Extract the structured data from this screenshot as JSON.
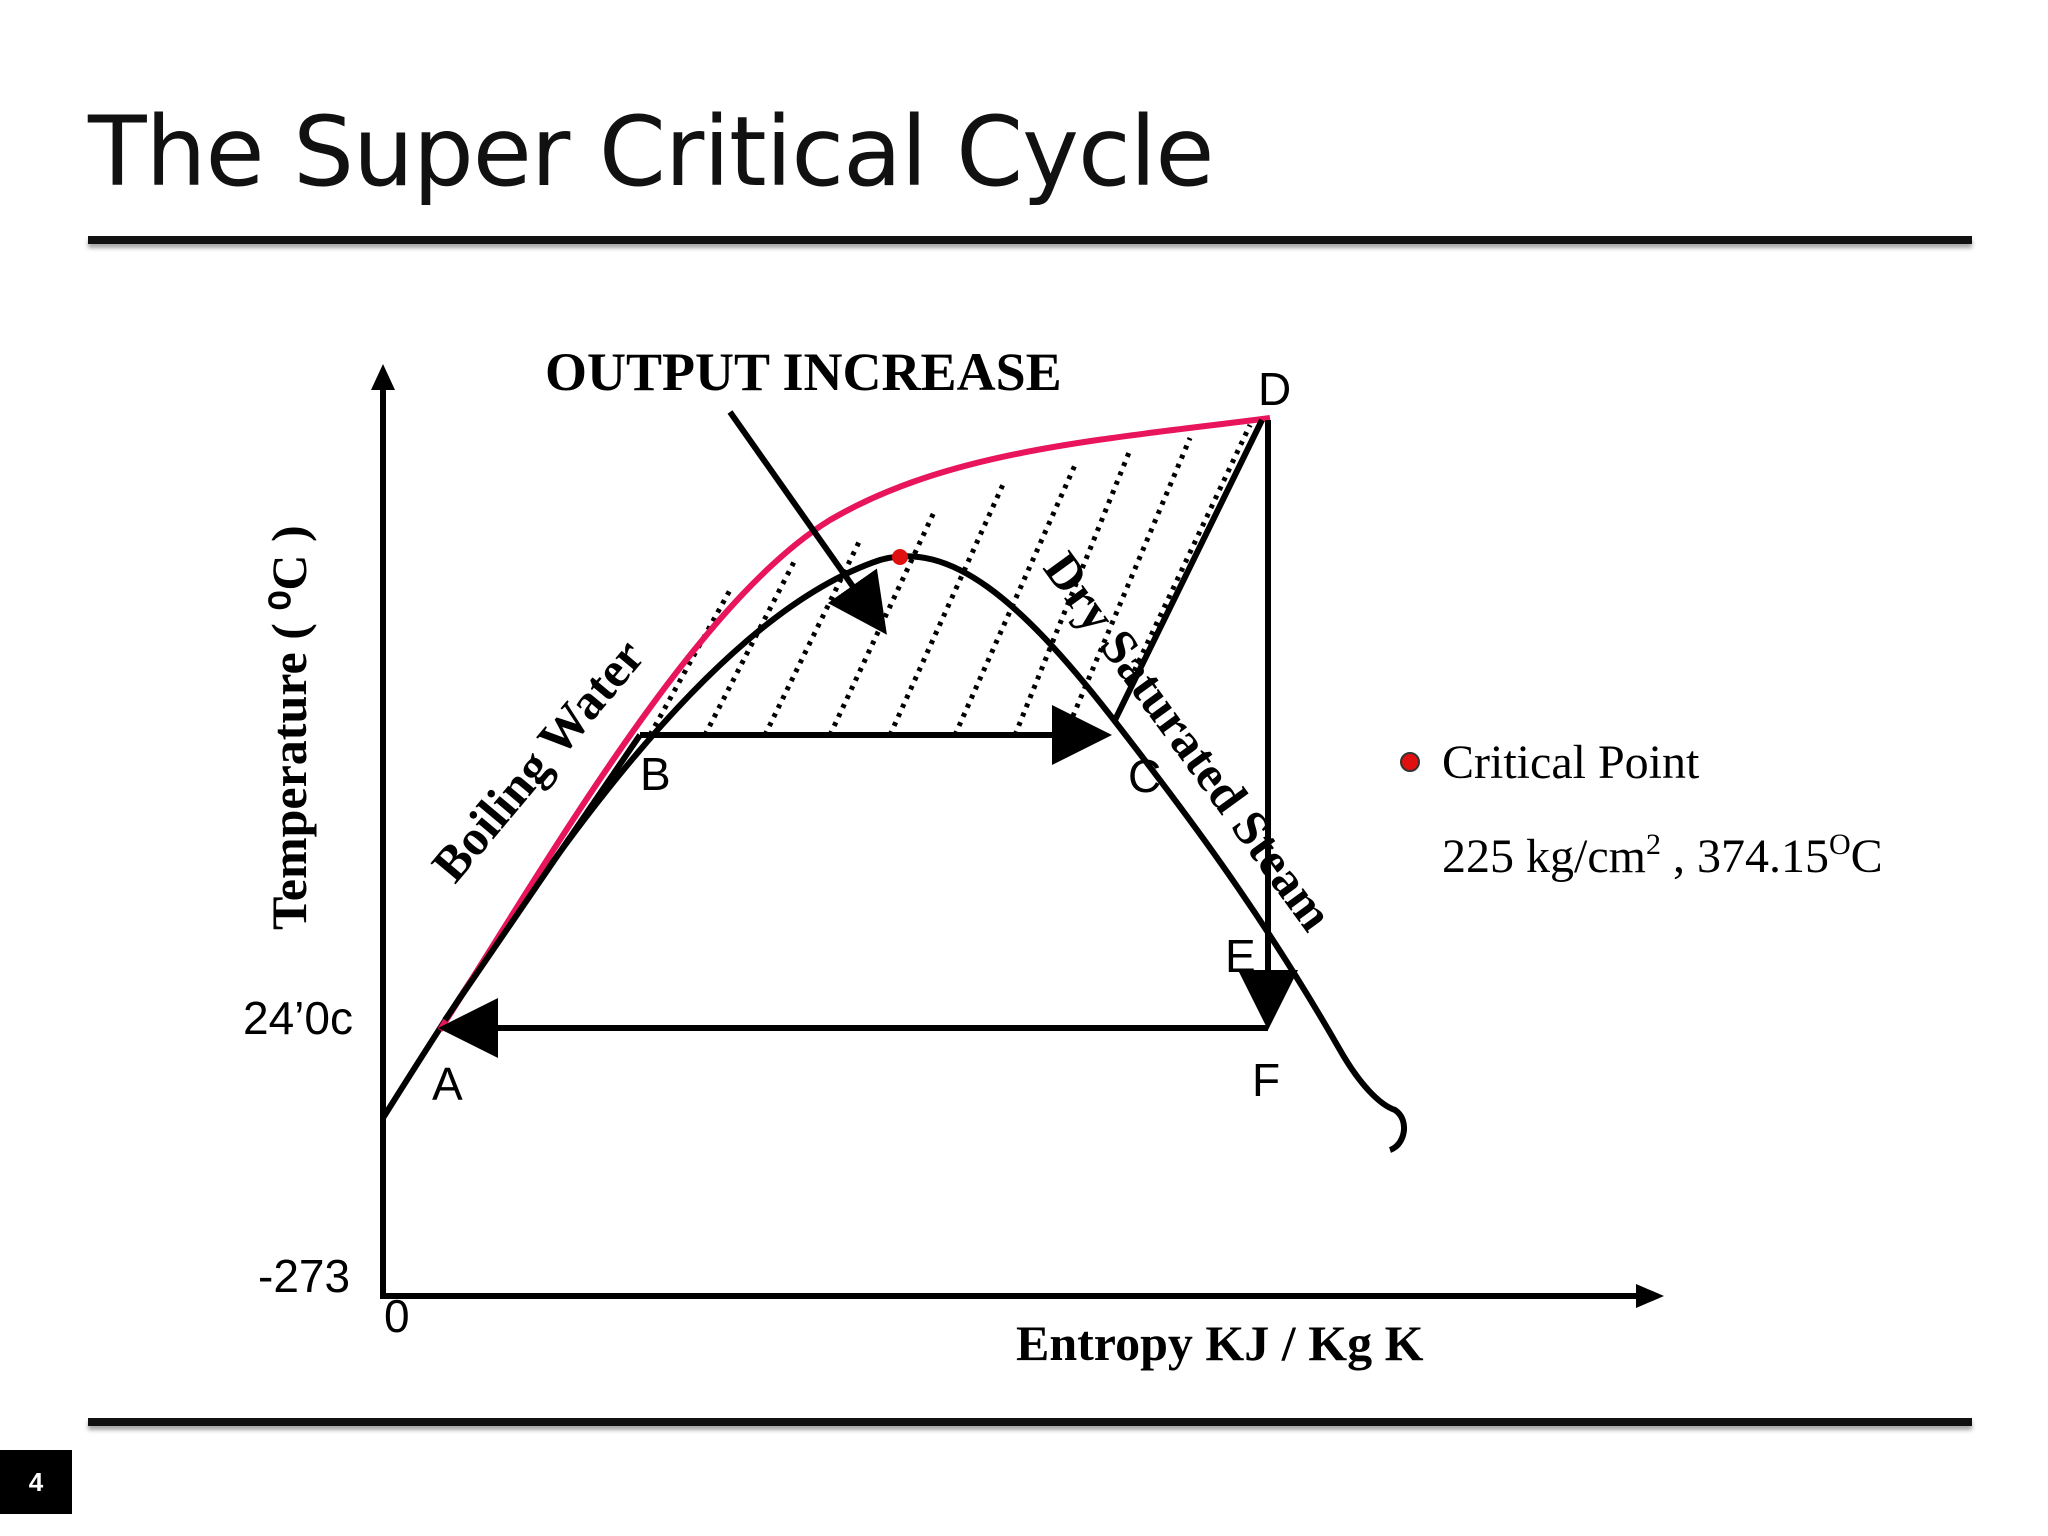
{
  "slide": {
    "title": "The Super Critical Cycle",
    "page_number": "4"
  },
  "diagram": {
    "axes": {
      "y_label": "Temperature ( ⁰C )",
      "x_label": "Entropy  KJ / Kg K",
      "origin_label": "0",
      "y_tick_low": "-273",
      "y_tick_mid": "24’0c"
    },
    "annotation": "OUTPUT INCREASE",
    "curve_labels": {
      "boiling_water": "Boiling Water",
      "dry_saturated_steam": "Dry Saturated Steam"
    },
    "points": {
      "A": "A",
      "B": "B",
      "C": "C",
      "D": "D",
      "E": "E",
      "F": "F"
    },
    "legend": {
      "label": "Critical Point",
      "value_prefix": "225 kg/cm",
      "value_sup1": "2",
      "value_mid": " , 374.15",
      "value_sup2": "O",
      "value_suffix": "C"
    },
    "colors": {
      "superheat_curve": "#e8145c",
      "critical_point": "#e01010",
      "lines": "#000000"
    }
  }
}
